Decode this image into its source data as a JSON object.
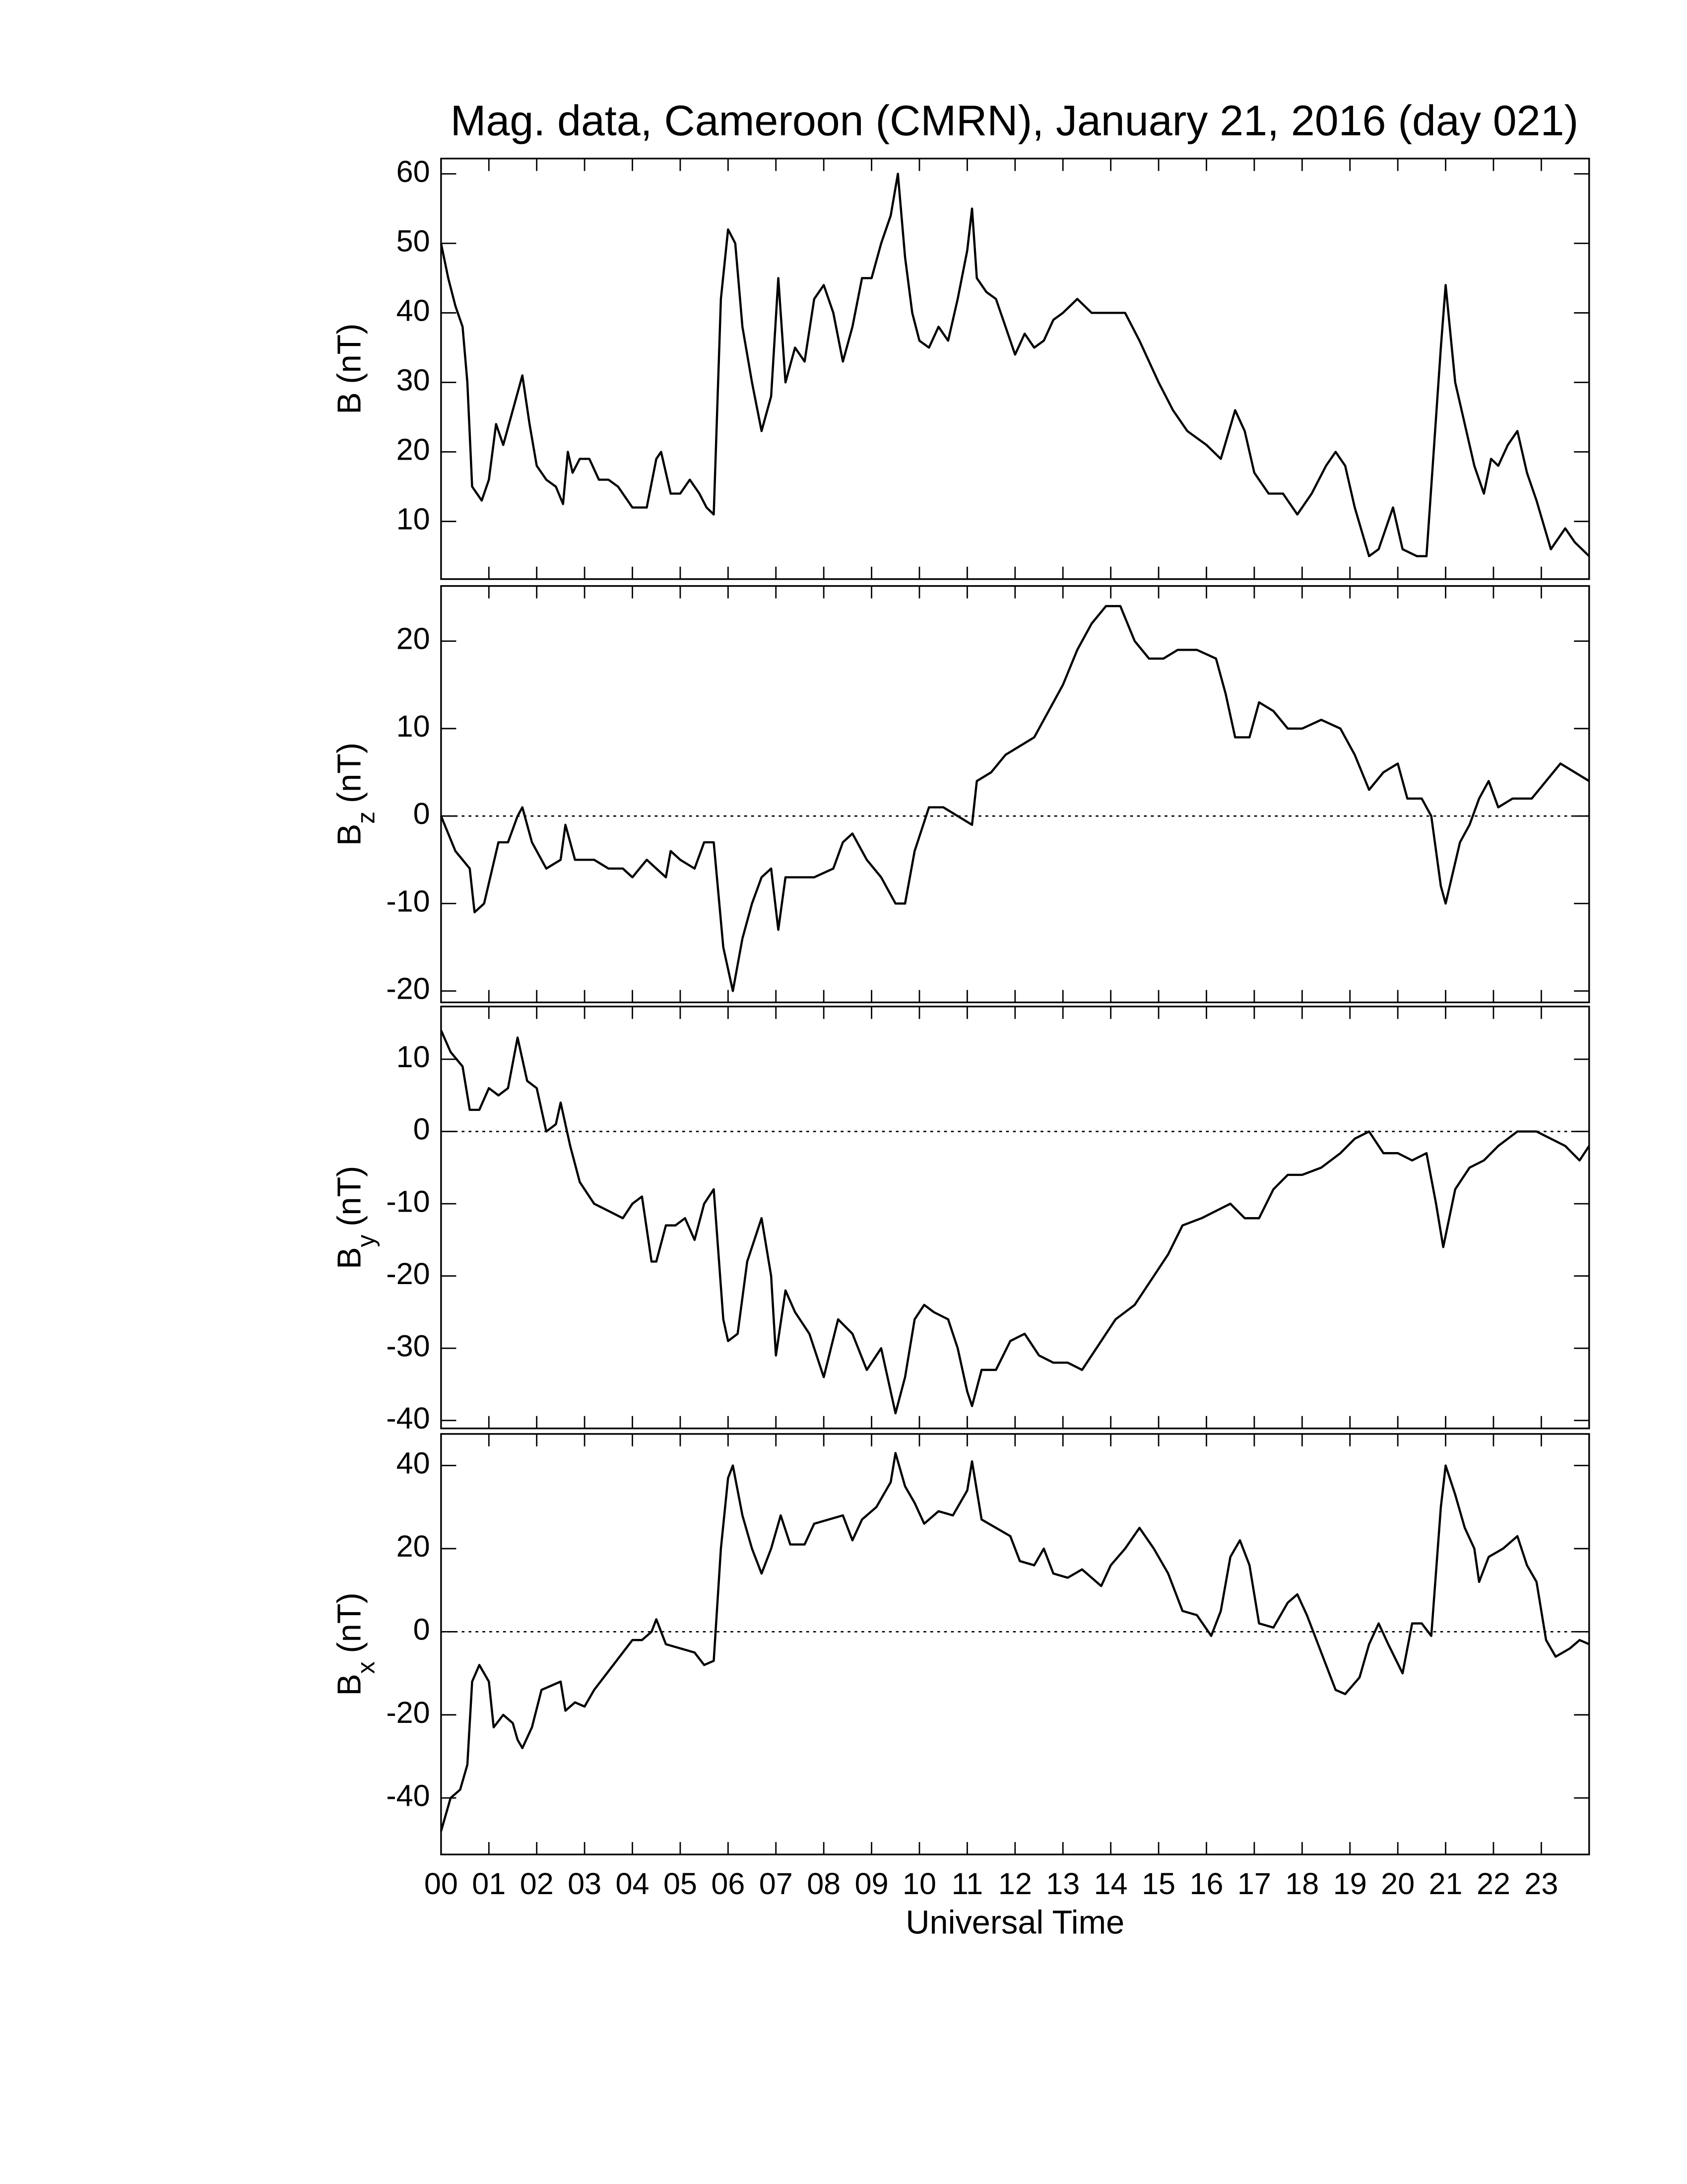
{
  "chart_data": [
    {
      "type": "line",
      "title": "Mag. data, Cameroon (CMRN), January 21, 2016 (day 021)",
      "ylabel": "B",
      "ylabel_unit": "(nT)",
      "color": "#000000",
      "zero_line": false,
      "xlim": [
        0,
        24
      ],
      "xticks": [
        0,
        1,
        2,
        3,
        4,
        5,
        6,
        7,
        8,
        9,
        10,
        11,
        12,
        13,
        14,
        15,
        16,
        17,
        18,
        19,
        20,
        21,
        22,
        23
      ],
      "ylim": [
        1.7,
        62.2
      ],
      "yticks": [
        10,
        20,
        30,
        40,
        50,
        60
      ],
      "x": [
        0,
        0.15,
        0.3,
        0.45,
        0.55,
        0.65,
        0.85,
        1.0,
        1.15,
        1.3,
        1.5,
        1.7,
        1.85,
        2.0,
        2.2,
        2.4,
        2.55,
        2.65,
        2.75,
        2.9,
        3.1,
        3.3,
        3.5,
        3.7,
        4.0,
        4.3,
        4.5,
        4.6,
        4.8,
        5.0,
        5.2,
        5.4,
        5.55,
        5.7,
        5.85,
        6.0,
        6.15,
        6.3,
        6.5,
        6.7,
        6.9,
        7.05,
        7.2,
        7.4,
        7.6,
        7.8,
        8.0,
        8.2,
        8.4,
        8.6,
        8.8,
        9.0,
        9.2,
        9.4,
        9.55,
        9.7,
        9.85,
        10.0,
        10.2,
        10.4,
        10.6,
        10.8,
        11.0,
        11.1,
        11.2,
        11.4,
        11.6,
        11.8,
        12.0,
        12.2,
        12.4,
        12.6,
        12.8,
        13.0,
        13.3,
        13.6,
        14.0,
        14.3,
        14.6,
        15.0,
        15.3,
        15.6,
        16.0,
        16.3,
        16.6,
        16.8,
        17.0,
        17.3,
        17.6,
        17.9,
        18.2,
        18.5,
        18.7,
        18.9,
        19.1,
        19.4,
        19.6,
        19.9,
        20.1,
        20.4,
        20.6,
        20.9,
        21.0,
        21.2,
        21.4,
        21.6,
        21.8,
        21.95,
        22.1,
        22.3,
        22.5,
        22.7,
        22.9,
        23.2,
        23.5,
        23.7,
        24
      ],
      "values": [
        50,
        45,
        41,
        38,
        30,
        15,
        13,
        16,
        24,
        21,
        26,
        31,
        24,
        18,
        16,
        15,
        12.5,
        20,
        17,
        19,
        19,
        16,
        16,
        15,
        12,
        12,
        19,
        20,
        14,
        14,
        16,
        14,
        12,
        11,
        42,
        52,
        50,
        38,
        30,
        23,
        28,
        45,
        30,
        35,
        33,
        42,
        44,
        40,
        33,
        38,
        45,
        45,
        50,
        54,
        60,
        48,
        40,
        36,
        35,
        38,
        36,
        42,
        49,
        55,
        45,
        43,
        42,
        38,
        34,
        37,
        35,
        36,
        39,
        40,
        42,
        40,
        40,
        40,
        36,
        30,
        26,
        23,
        21,
        19,
        26,
        23,
        17,
        14,
        14,
        11,
        14,
        18,
        20,
        18,
        12,
        5,
        6,
        12,
        6,
        5,
        5,
        35,
        44,
        30,
        24,
        18,
        14,
        19,
        18,
        21,
        23,
        17,
        13,
        6,
        9,
        7,
        5
      ]
    },
    {
      "type": "line",
      "ylabel": "B",
      "ylabel_subscript": "z",
      "ylabel_unit": "(nT)",
      "color": "#000000",
      "zero_line": true,
      "xlim": [
        0,
        24
      ],
      "xticks": [
        0,
        1,
        2,
        3,
        4,
        5,
        6,
        7,
        8,
        9,
        10,
        11,
        12,
        13,
        14,
        15,
        16,
        17,
        18,
        19,
        20,
        21,
        22,
        23
      ],
      "ylim": [
        -21.3,
        26.3
      ],
      "yticks": [
        -20,
        -10,
        0,
        10,
        20
      ],
      "x": [
        0,
        0.3,
        0.6,
        0.7,
        0.9,
        1.2,
        1.4,
        1.6,
        1.7,
        1.9,
        2.2,
        2.5,
        2.6,
        2.8,
        3.2,
        3.5,
        3.8,
        4.0,
        4.3,
        4.5,
        4.7,
        4.8,
        5.0,
        5.3,
        5.5,
        5.7,
        5.9,
        6.1,
        6.3,
        6.5,
        6.7,
        6.9,
        7.05,
        7.2,
        7.5,
        7.8,
        8.2,
        8.4,
        8.6,
        8.9,
        9.2,
        9.5,
        9.7,
        9.9,
        10.2,
        10.5,
        10.8,
        11.1,
        11.2,
        11.5,
        11.8,
        12.1,
        12.4,
        12.7,
        13.0,
        13.3,
        13.6,
        13.9,
        14.2,
        14.5,
        14.8,
        15.1,
        15.4,
        15.8,
        16.2,
        16.4,
        16.6,
        16.9,
        17.1,
        17.4,
        17.7,
        18.0,
        18.4,
        18.8,
        19.1,
        19.4,
        19.7,
        20.0,
        20.2,
        20.5,
        20.7,
        20.9,
        21.0,
        21.3,
        21.5,
        21.7,
        21.9,
        22.1,
        22.4,
        22.8,
        23.1,
        23.4,
        23.7,
        24
      ],
      "values": [
        0,
        -4,
        -6,
        -11,
        -10,
        -3,
        -3,
        0,
        1,
        -3,
        -6,
        -5,
        -1,
        -5,
        -5,
        -6,
        -6,
        -7,
        -5,
        -6,
        -7,
        -4,
        -5,
        -6,
        -3,
        -3,
        -15,
        -20,
        -14,
        -10,
        -7,
        -6,
        -13,
        -7,
        -7,
        -7,
        -6,
        -3,
        -2,
        -5,
        -7,
        -10,
        -10,
        -4,
        1,
        1,
        0,
        -1,
        4,
        5,
        7,
        8,
        9,
        12,
        15,
        19,
        22,
        24,
        24,
        20,
        18,
        18,
        19,
        19,
        18,
        14,
        9,
        9,
        13,
        12,
        10,
        10,
        11,
        10,
        7,
        3,
        5,
        6,
        2,
        2,
        0,
        -8,
        -10,
        -3,
        -1,
        2,
        4,
        1,
        2,
        2,
        4,
        6,
        5,
        4
      ]
    },
    {
      "type": "line",
      "ylabel": "B",
      "ylabel_subscript": "y",
      "ylabel_unit": "(nT)",
      "color": "#000000",
      "zero_line": true,
      "xlim": [
        0,
        24
      ],
      "xticks": [
        0,
        1,
        2,
        3,
        4,
        5,
        6,
        7,
        8,
        9,
        10,
        11,
        12,
        13,
        14,
        15,
        16,
        17,
        18,
        19,
        20,
        21,
        22,
        23
      ],
      "ylim": [
        -41.1,
        17.3
      ],
      "yticks": [
        -40,
        -30,
        -20,
        -10,
        0,
        10
      ],
      "x": [
        0,
        0.2,
        0.45,
        0.6,
        0.8,
        1.0,
        1.2,
        1.4,
        1.6,
        1.8,
        2.0,
        2.2,
        2.4,
        2.5,
        2.7,
        2.9,
        3.2,
        3.5,
        3.8,
        4.0,
        4.2,
        4.4,
        4.5,
        4.7,
        4.9,
        5.1,
        5.3,
        5.5,
        5.7,
        5.9,
        6.0,
        6.2,
        6.4,
        6.7,
        6.9,
        7.0,
        7.2,
        7.4,
        7.7,
        8.0,
        8.3,
        8.6,
        8.9,
        9.2,
        9.5,
        9.7,
        9.9,
        10.1,
        10.3,
        10.6,
        10.8,
        11.0,
        11.1,
        11.3,
        11.6,
        11.9,
        12.2,
        12.5,
        12.8,
        13.1,
        13.4,
        13.7,
        14.1,
        14.5,
        14.9,
        15.2,
        15.5,
        15.9,
        16.2,
        16.5,
        16.8,
        17.1,
        17.4,
        17.7,
        18.0,
        18.4,
        18.8,
        19.1,
        19.4,
        19.7,
        20.0,
        20.3,
        20.6,
        20.8,
        20.95,
        21.2,
        21.5,
        21.8,
        22.1,
        22.5,
        22.9,
        23.2,
        23.5,
        23.8,
        24
      ],
      "values": [
        14,
        11,
        9,
        3,
        3,
        6,
        5,
        6,
        13,
        7,
        6,
        0,
        1,
        4,
        -2,
        -7,
        -10,
        -11,
        -12,
        -10,
        -9,
        -18,
        -18,
        -13,
        -13,
        -12,
        -15,
        -10,
        -8,
        -26,
        -29,
        -28,
        -18,
        -12,
        -20,
        -31,
        -22,
        -25,
        -28,
        -34,
        -26,
        -28,
        -33,
        -30,
        -39,
        -34,
        -26,
        -24,
        -25,
        -26,
        -30,
        -36,
        -38,
        -33,
        -33,
        -29,
        -28,
        -31,
        -32,
        -32,
        -33,
        -30,
        -26,
        -24,
        -20,
        -17,
        -13,
        -12,
        -11,
        -10,
        -12,
        -12,
        -8,
        -6,
        -6,
        -5,
        -3,
        -1,
        0,
        -3,
        -3,
        -4,
        -3,
        -10,
        -16,
        -8,
        -5,
        -4,
        -2,
        0,
        0,
        -1,
        -2,
        -4,
        -2
      ]
    },
    {
      "type": "line",
      "ylabel": "B",
      "ylabel_subscript": "x",
      "ylabel_unit": "(nT)",
      "xlabel": "Universal Time",
      "color": "#000000",
      "zero_line": true,
      "xlim": [
        0,
        24
      ],
      "xticks": [
        {
          "value": 0,
          "label": "00"
        },
        {
          "value": 1,
          "label": "01"
        },
        {
          "value": 2,
          "label": "02"
        },
        {
          "value": 3,
          "label": "03"
        },
        {
          "value": 4,
          "label": "04"
        },
        {
          "value": 5,
          "label": "05"
        },
        {
          "value": 6,
          "label": "06"
        },
        {
          "value": 7,
          "label": "07"
        },
        {
          "value": 8,
          "label": "08"
        },
        {
          "value": 9,
          "label": "09"
        },
        10,
        11,
        12,
        13,
        14,
        15,
        16,
        17,
        18,
        19,
        20,
        21,
        22,
        23
      ],
      "ylim": [
        -53.6,
        47.6
      ],
      "yticks": [
        -40,
        -20,
        0,
        20,
        40
      ],
      "x": [
        0,
        0.2,
        0.4,
        0.55,
        0.65,
        0.8,
        1.0,
        1.1,
        1.3,
        1.5,
        1.6,
        1.7,
        1.9,
        2.1,
        2.3,
        2.5,
        2.6,
        2.8,
        3.0,
        3.2,
        3.4,
        3.6,
        3.8,
        4.0,
        4.2,
        4.4,
        4.5,
        4.7,
        5.0,
        5.3,
        5.5,
        5.7,
        5.85,
        6.0,
        6.1,
        6.3,
        6.5,
        6.7,
        6.9,
        7.1,
        7.3,
        7.6,
        7.8,
        8.1,
        8.4,
        8.6,
        8.8,
        9.1,
        9.4,
        9.5,
        9.7,
        9.9,
        10.1,
        10.4,
        10.7,
        11.0,
        11.1,
        11.3,
        11.6,
        11.9,
        12.1,
        12.4,
        12.6,
        12.8,
        13.1,
        13.4,
        13.6,
        13.8,
        14.0,
        14.3,
        14.6,
        14.9,
        15.2,
        15.5,
        15.8,
        16.1,
        16.3,
        16.5,
        16.7,
        16.9,
        17.1,
        17.4,
        17.7,
        17.9,
        18.1,
        18.4,
        18.7,
        18.9,
        19.2,
        19.4,
        19.6,
        19.8,
        20.1,
        20.3,
        20.5,
        20.7,
        20.9,
        21.0,
        21.2,
        21.4,
        21.6,
        21.7,
        21.9,
        22.2,
        22.5,
        22.7,
        22.9,
        23.1,
        23.3,
        23.6,
        23.8,
        24
      ],
      "values": [
        -48,
        -40,
        -38,
        -32,
        -12,
        -8,
        -12,
        -23,
        -20,
        -22,
        -26,
        -28,
        -23,
        -14,
        -13,
        -12,
        -19,
        -17,
        -18,
        -14,
        -11,
        -8,
        -5,
        -2,
        -2,
        0,
        3,
        -3,
        -4,
        -5,
        -8,
        -7,
        20,
        37,
        40,
        28,
        20,
        14,
        20,
        28,
        21,
        21,
        26,
        27,
        28,
        22,
        27,
        30,
        36,
        43,
        35,
        31,
        26,
        29,
        28,
        34,
        41,
        27,
        25,
        23,
        17,
        16,
        20,
        14,
        13,
        15,
        13,
        11,
        16,
        20,
        25,
        20,
        14,
        5,
        4,
        -1,
        5,
        18,
        22,
        16,
        2,
        1,
        7,
        9,
        4,
        -5,
        -14,
        -15,
        -11,
        -3,
        2,
        -3,
        -10,
        2,
        2,
        -1,
        30,
        40,
        33,
        25,
        20,
        12,
        18,
        20,
        23,
        16,
        12,
        -2,
        -6,
        -4,
        -2,
        -3
      ]
    }
  ]
}
